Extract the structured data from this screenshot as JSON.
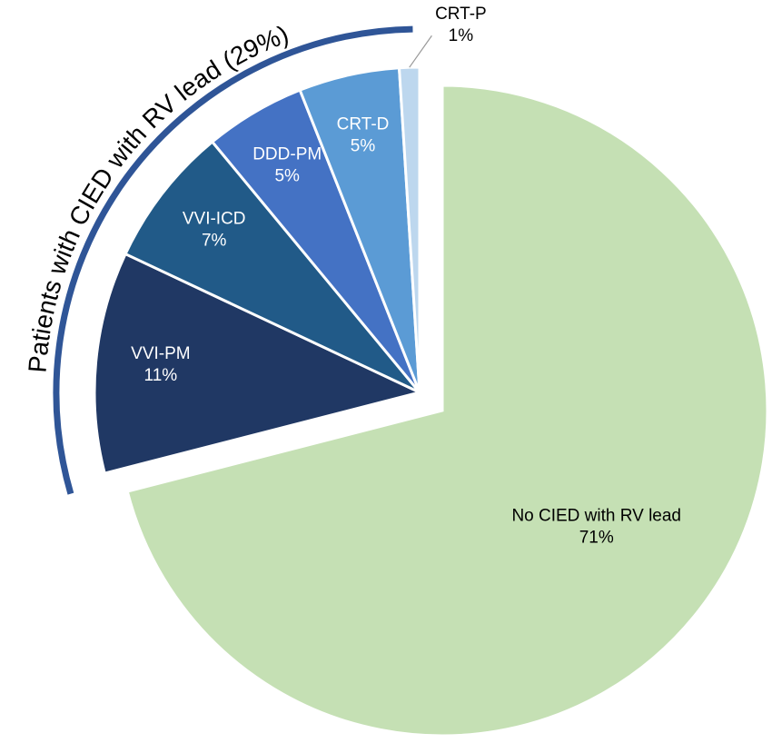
{
  "chart_data": {
    "type": "pie",
    "annotation": "Patients with CIED with RV lead (29%)",
    "categories": [
      "No CIED with RV lead",
      "VVI-PM",
      "VVI-ICD",
      "DDD-PM",
      "CRT-D",
      "CRT-P"
    ],
    "values": [
      71,
      11,
      7,
      5,
      5,
      1
    ],
    "value_labels": [
      "71%",
      "11%",
      "7%",
      "5%",
      "5%",
      "1%"
    ],
    "colors": [
      "#c5e0b4",
      "#203864",
      "#215a88",
      "#4472c4",
      "#5b9bd5",
      "#bdd7ee"
    ]
  }
}
